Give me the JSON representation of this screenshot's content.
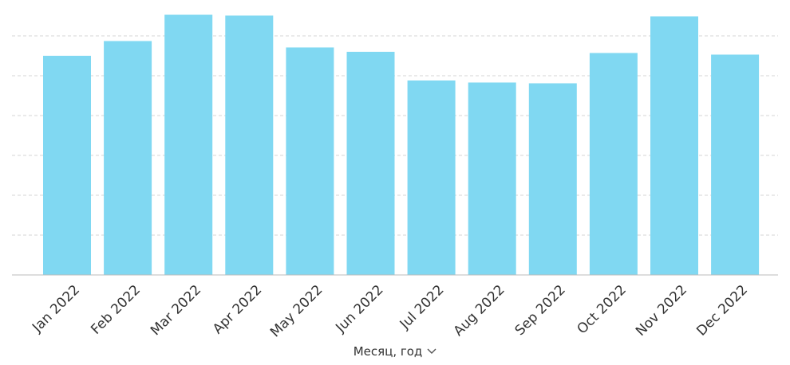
{
  "chart_data": {
    "type": "bar",
    "categories": [
      "Jan 2022",
      "Feb 2022",
      "Mar 2022",
      "Apr 2022",
      "May 2022",
      "Jun 2022",
      "Jul 2022",
      "Aug 2022",
      "Sep 2022",
      "Oct 2022",
      "Nov 2022",
      "Dec 2022"
    ],
    "values": [
      5.5,
      5.87,
      6.53,
      6.51,
      5.71,
      5.6,
      4.88,
      4.83,
      4.81,
      5.57,
      6.49,
      5.53
    ],
    "ylim": [
      0,
      6.6
    ],
    "gridlines": [
      1,
      2,
      3,
      4,
      5,
      6
    ],
    "grid": true,
    "title": "",
    "ylabel": "",
    "xlabel": "Месяц, год",
    "colors": {
      "bar": "#80d8f2",
      "grid": "#d6d6d6",
      "axis": "#bbbbbb"
    }
  },
  "controls": {
    "xlabel_dropdown_icon": "chevron-down-icon"
  }
}
